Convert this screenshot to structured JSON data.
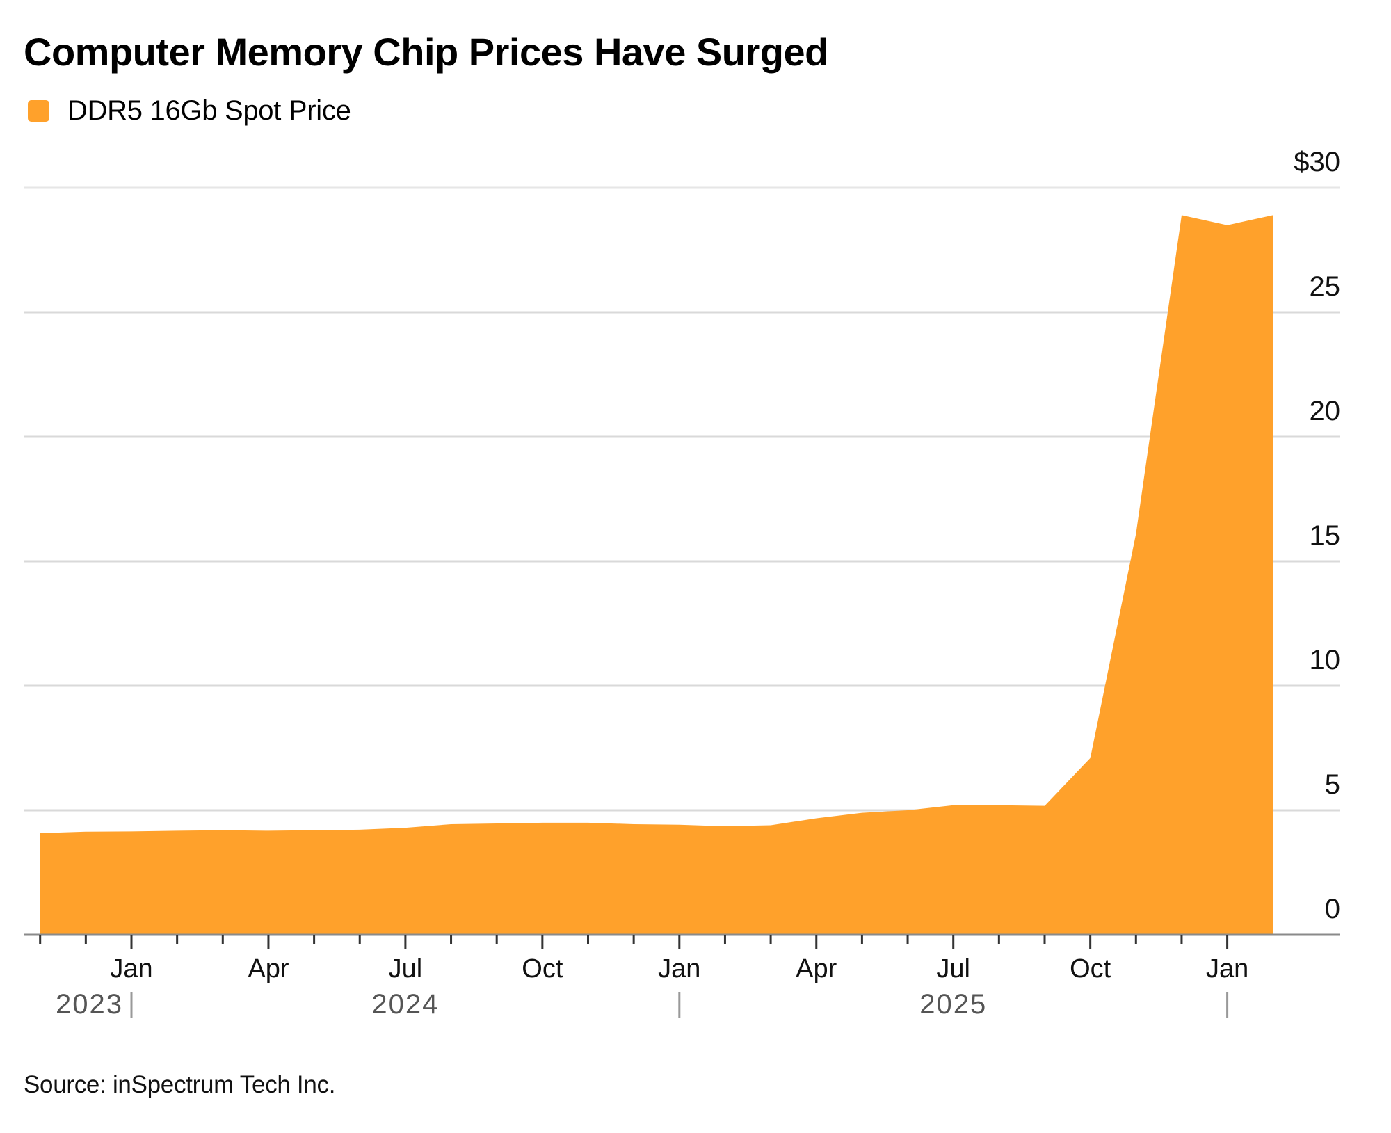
{
  "title": "Computer Memory Chip Prices Have Surged",
  "source": "Source: inSpectrum Tech Inc.",
  "colors": {
    "series": "#FFA12B",
    "grid": "#d9d9d9",
    "axis": "#8a8a8a",
    "tick": "#333333",
    "year_text": "#555555"
  },
  "chart_data": {
    "type": "area",
    "title": "Computer Memory Chip Prices Have Surged",
    "xlabel": "",
    "ylabel": "",
    "ylim": [
      0,
      30
    ],
    "y_ticks": [
      0,
      5,
      10,
      15,
      20,
      25,
      30
    ],
    "y_tick_labels": [
      "0",
      "5",
      "10",
      "15",
      "20",
      "25",
      "$30"
    ],
    "grid": true,
    "legend_position": "top-left",
    "x_month_ticks_start": "2023-11",
    "x_month_ticks_end": "2026-01",
    "x_tick_labels": [
      {
        "month": "2024-01",
        "label": "Jan"
      },
      {
        "month": "2024-04",
        "label": "Apr"
      },
      {
        "month": "2024-07",
        "label": "Jul"
      },
      {
        "month": "2024-10",
        "label": "Oct"
      },
      {
        "month": "2025-01",
        "label": "Jan"
      },
      {
        "month": "2025-04",
        "label": "Apr"
      },
      {
        "month": "2025-07",
        "label": "Jul"
      },
      {
        "month": "2025-10",
        "label": "Oct"
      },
      {
        "month": "2026-01",
        "label": "Jan"
      }
    ],
    "year_labels": [
      {
        "label": "2023",
        "anchor": "end",
        "month": "2024-01"
      },
      {
        "label": "2024",
        "anchor": "middle",
        "month": "2024-07"
      },
      {
        "label": "2025",
        "anchor": "middle",
        "month": "2025-07"
      }
    ],
    "year_separators": [
      "2024-01",
      "2025-01",
      "2026-01"
    ],
    "series": [
      {
        "name": "DDR5 16Gb Spot Price",
        "x": [
          "2023-11",
          "2023-12",
          "2024-01",
          "2024-02",
          "2024-03",
          "2024-04",
          "2024-05",
          "2024-06",
          "2024-07",
          "2024-08",
          "2024-09",
          "2024-10",
          "2024-11",
          "2024-12",
          "2025-01",
          "2025-02",
          "2025-03",
          "2025-04",
          "2025-05",
          "2025-06",
          "2025-07",
          "2025-08",
          "2025-09",
          "2025-10",
          "2025-11",
          "2025-12",
          "2026-01",
          "2026-02"
        ],
        "values": [
          4.08,
          4.14,
          4.15,
          4.18,
          4.2,
          4.18,
          4.2,
          4.22,
          4.3,
          4.44,
          4.47,
          4.5,
          4.5,
          4.44,
          4.42,
          4.36,
          4.4,
          4.68,
          4.9,
          5.0,
          5.2,
          5.2,
          5.18,
          7.1,
          16.1,
          28.9,
          28.5,
          28.9
        ]
      }
    ]
  }
}
